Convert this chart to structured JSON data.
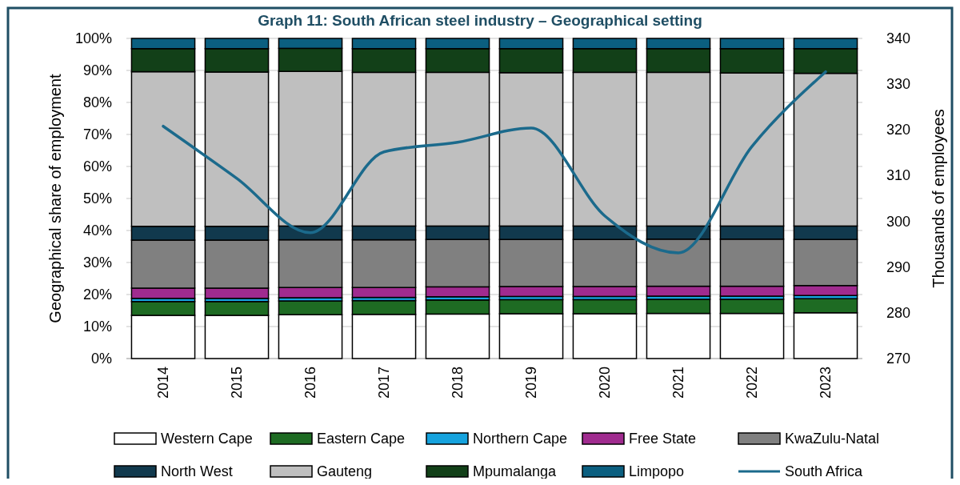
{
  "chart_data": {
    "type": "bar",
    "stacked": true,
    "title": "Graph 11: South African steel industry – Geographical setting",
    "ylabel": "Geographical share of employment",
    "y2label": "Thousands of employees",
    "categories": [
      "2014",
      "2015",
      "2016",
      "2017",
      "2018",
      "2019",
      "2020",
      "2021",
      "2022",
      "2023"
    ],
    "series": [
      {
        "name": "Western Cape",
        "color": "#ffffff",
        "values": [
          13.5,
          13.5,
          13.7,
          13.8,
          13.9,
          14.0,
          14.0,
          14.1,
          14.1,
          14.3
        ]
      },
      {
        "name": "Eastern Cape",
        "color": "#1e6b23",
        "values": [
          4.3,
          4.3,
          4.3,
          4.3,
          4.4,
          4.4,
          4.4,
          4.4,
          4.4,
          4.4
        ]
      },
      {
        "name": "Northern Cape",
        "color": "#16a3de",
        "values": [
          1.0,
          1.0,
          1.0,
          1.0,
          1.0,
          1.0,
          1.0,
          1.0,
          1.0,
          1.0
        ]
      },
      {
        "name": "Free State",
        "color": "#a02b8f",
        "values": [
          3.2,
          3.2,
          3.2,
          3.1,
          3.1,
          3.1,
          3.1,
          3.1,
          3.1,
          3.1
        ]
      },
      {
        "name": "KwaZulu-Natal",
        "color": "#808080",
        "values": [
          15.0,
          15.0,
          14.9,
          14.9,
          14.8,
          14.7,
          14.7,
          14.7,
          14.7,
          14.4
        ]
      },
      {
        "name": "North West",
        "color": "#11394d",
        "values": [
          4.3,
          4.3,
          4.3,
          4.3,
          4.2,
          4.2,
          4.2,
          4.1,
          4.1,
          4.2
        ]
      },
      {
        "name": "Gauteng",
        "color": "#bfbfbf",
        "values": [
          48.3,
          48.2,
          48.3,
          48.0,
          48.0,
          47.9,
          48.0,
          48.0,
          47.8,
          47.7
        ]
      },
      {
        "name": "Mpumalanga",
        "color": "#124018",
        "values": [
          7.2,
          7.3,
          7.2,
          7.4,
          7.4,
          7.5,
          7.4,
          7.4,
          7.6,
          7.7
        ]
      },
      {
        "name": "Limpopo",
        "color": "#0b5f80",
        "values": [
          3.2,
          3.2,
          3.1,
          3.2,
          3.2,
          3.2,
          3.2,
          3.2,
          3.2,
          3.2
        ]
      },
      {
        "name": "South Africa",
        "type": "line",
        "axis": "y2",
        "color": "#1b6a8c",
        "values": [
          320.8,
          309.4,
          297.5,
          315.2,
          317.3,
          320.4,
          301.2,
          293.1,
          316.4,
          332.7
        ]
      }
    ],
    "ylim": [
      0,
      100
    ],
    "yticks": [
      {
        "value": 0,
        "label": "0%"
      },
      {
        "value": 10,
        "label": "10%"
      },
      {
        "value": 20,
        "label": "20%"
      },
      {
        "value": 30,
        "label": "30%"
      },
      {
        "value": 40,
        "label": "40%"
      },
      {
        "value": 50,
        "label": "50%"
      },
      {
        "value": 60,
        "label": "60%"
      },
      {
        "value": 70,
        "label": "70%"
      },
      {
        "value": 80,
        "label": "80%"
      },
      {
        "value": 90,
        "label": "90%"
      },
      {
        "value": 100,
        "label": "100%"
      }
    ],
    "y2lim": [
      270,
      340
    ],
    "y2ticks": [
      270,
      280,
      290,
      300,
      310,
      320,
      330,
      340
    ],
    "grid": "y",
    "legend": "bottom"
  }
}
